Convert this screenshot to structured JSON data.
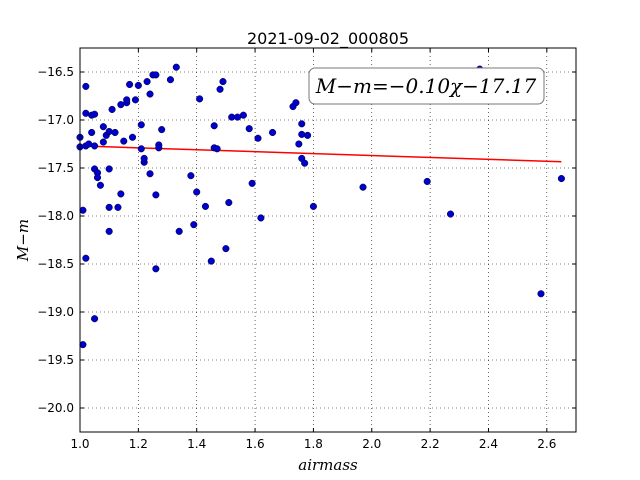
{
  "chart_data": {
    "type": "scatter",
    "title": "2021-09-02_000805",
    "xlabel": "airmass",
    "ylabel": "M−m",
    "xlim": [
      1.0,
      2.7
    ],
    "ylim": [
      -20.25,
      -16.25
    ],
    "y_inverted": true,
    "xticks": [
      1.0,
      1.2,
      1.4,
      1.6,
      1.8,
      2.0,
      2.2,
      2.4,
      2.6
    ],
    "xtick_labels": [
      "1.0",
      "1.2",
      "1.4",
      "1.6",
      "1.8",
      "2.0",
      "2.2",
      "2.4",
      "2.6"
    ],
    "yticks": [
      -16.5,
      -17.0,
      -17.5,
      -18.0,
      -18.5,
      -19.0,
      -19.5,
      -20.0
    ],
    "ytick_labels": [
      "−16.5",
      "−17.0",
      "−17.5",
      "−18.0",
      "−18.5",
      "−19.0",
      "−19.5",
      "−20.0"
    ],
    "grid": true,
    "point_color": "#0000cc",
    "fit_color": "#ff0000",
    "fit_label": "M−m=−0.10χ−17.17",
    "fit_label_position": "top-right",
    "fit": {
      "slope": -0.1,
      "intercept": -17.17,
      "x_range": [
        1.0,
        2.65
      ]
    },
    "points": [
      [
        1.0,
        -17.18
      ],
      [
        1.0,
        -17.28
      ],
      [
        1.01,
        -17.94
      ],
      [
        1.01,
        -19.34
      ],
      [
        1.02,
        -16.93
      ],
      [
        1.02,
        -17.27
      ],
      [
        1.02,
        -18.44
      ],
      [
        1.02,
        -16.65
      ],
      [
        1.03,
        -17.25
      ],
      [
        1.04,
        -17.13
      ],
      [
        1.04,
        -16.95
      ],
      [
        1.05,
        -17.27
      ],
      [
        1.05,
        -17.51
      ],
      [
        1.05,
        -16.94
      ],
      [
        1.05,
        -19.07
      ],
      [
        1.06,
        -17.55
      ],
      [
        1.06,
        -17.6
      ],
      [
        1.07,
        -17.68
      ],
      [
        1.08,
        -17.23
      ],
      [
        1.08,
        -17.07
      ],
      [
        1.09,
        -17.16
      ],
      [
        1.1,
        -17.12
      ],
      [
        1.1,
        -17.51
      ],
      [
        1.1,
        -18.16
      ],
      [
        1.1,
        -17.91
      ],
      [
        1.11,
        -16.89
      ],
      [
        1.12,
        -17.13
      ],
      [
        1.13,
        -17.91
      ],
      [
        1.14,
        -16.84
      ],
      [
        1.14,
        -17.77
      ],
      [
        1.15,
        -17.22
      ],
      [
        1.16,
        -16.82
      ],
      [
        1.16,
        -16.79
      ],
      [
        1.17,
        -16.63
      ],
      [
        1.18,
        -17.18
      ],
      [
        1.19,
        -16.79
      ],
      [
        1.2,
        -16.64
      ],
      [
        1.21,
        -17.05
      ],
      [
        1.21,
        -17.3
      ],
      [
        1.22,
        -17.44
      ],
      [
        1.22,
        -17.4
      ],
      [
        1.23,
        -16.6
      ],
      [
        1.24,
        -16.73
      ],
      [
        1.24,
        -17.56
      ],
      [
        1.25,
        -16.53
      ],
      [
        1.26,
        -16.53
      ],
      [
        1.26,
        -17.78
      ],
      [
        1.26,
        -18.55
      ],
      [
        1.27,
        -17.26
      ],
      [
        1.27,
        -17.29
      ],
      [
        1.28,
        -17.1
      ],
      [
        1.31,
        -16.58
      ],
      [
        1.33,
        -16.45
      ],
      [
        1.34,
        -18.16
      ],
      [
        1.38,
        -17.58
      ],
      [
        1.39,
        -18.09
      ],
      [
        1.4,
        -17.75
      ],
      [
        1.41,
        -16.78
      ],
      [
        1.43,
        -17.9
      ],
      [
        1.45,
        -18.47
      ],
      [
        1.46,
        -17.06
      ],
      [
        1.46,
        -17.29
      ],
      [
        1.47,
        -17.3
      ],
      [
        1.48,
        -16.68
      ],
      [
        1.49,
        -16.6
      ],
      [
        1.5,
        -18.34
      ],
      [
        1.51,
        -17.86
      ],
      [
        1.52,
        -16.97
      ],
      [
        1.54,
        -16.97
      ],
      [
        1.56,
        -16.95
      ],
      [
        1.58,
        -17.09
      ],
      [
        1.59,
        -17.66
      ],
      [
        1.61,
        -17.19
      ],
      [
        1.62,
        -18.02
      ],
      [
        1.66,
        -17.13
      ],
      [
        1.73,
        -16.86
      ],
      [
        1.74,
        -16.82
      ],
      [
        1.75,
        -17.25
      ],
      [
        1.76,
        -17.04
      ],
      [
        1.76,
        -17.4
      ],
      [
        1.76,
        -17.15
      ],
      [
        1.77,
        -17.45
      ],
      [
        1.78,
        -17.16
      ],
      [
        1.8,
        -17.9
      ],
      [
        1.97,
        -17.7
      ],
      [
        2.19,
        -17.64
      ],
      [
        2.27,
        -17.98
      ],
      [
        2.37,
        -16.47
      ],
      [
        2.58,
        -18.81
      ],
      [
        2.65,
        -17.61
      ]
    ]
  }
}
